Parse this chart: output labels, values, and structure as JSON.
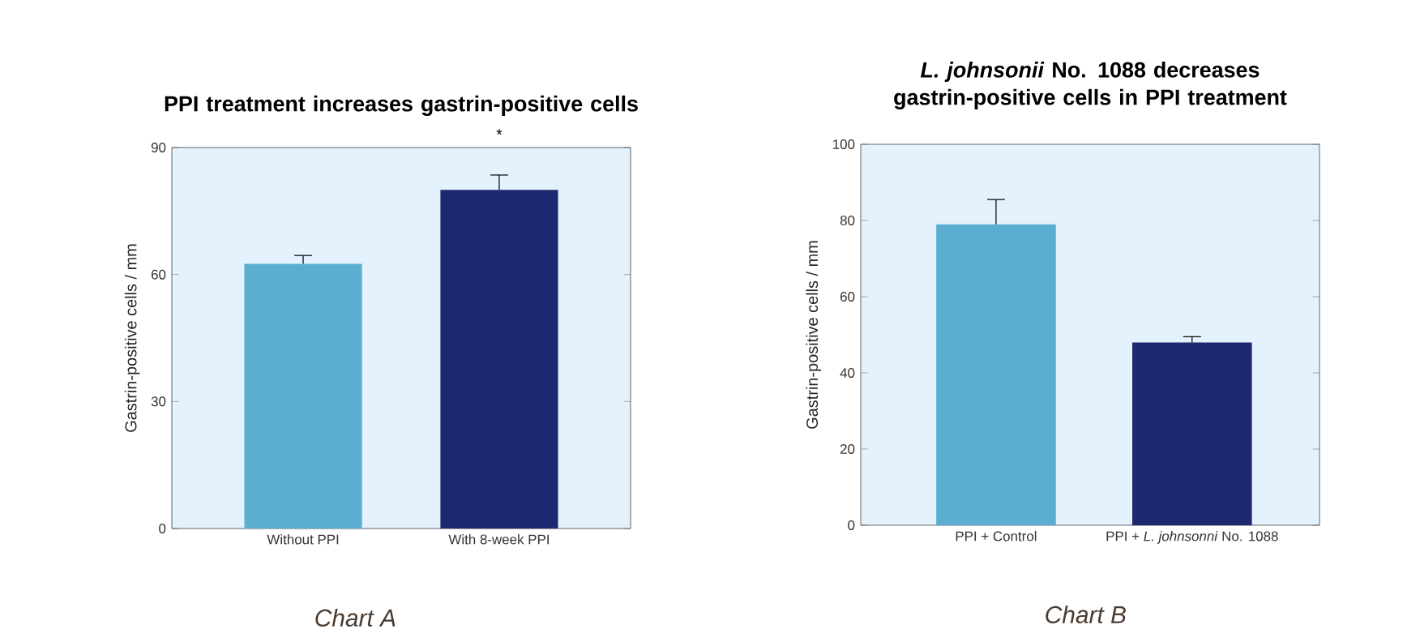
{
  "chart_data": [
    {
      "type": "bar",
      "title": "PPI treatment increases gastrin-positive cells",
      "ylabel": "Gastrin-positive cells / mm",
      "categories": [
        "Without PPI",
        "With 8-week PPI"
      ],
      "values": [
        62.5,
        80
      ],
      "errors": [
        [
          62.5,
          64.5
        ],
        [
          80,
          83.5
        ]
      ],
      "colors": [
        "#5aaed0",
        "#1e2870"
      ],
      "ylim": [
        0,
        90
      ],
      "yticks": [
        0,
        30,
        60,
        90
      ],
      "annotations": [
        "*",
        "Chart A"
      ]
    },
    {
      "type": "bar",
      "title": "*L. johnsonii* No. 1088 decreases gastrin-positive cells in PPI treatment",
      "ylabel": "Gastrin-positive cells / mm",
      "categories": [
        "PPI + Control",
        "PPI + *L. johnsonni* No. 1088"
      ],
      "values": [
        79,
        48
      ],
      "errors": [
        [
          79,
          85.5
        ],
        [
          48,
          49.5
        ]
      ],
      "colors": [
        "#5aaed0",
        "#1e2870"
      ],
      "ylim": [
        0,
        100
      ],
      "yticks": [
        0,
        20,
        40,
        60,
        80,
        100
      ],
      "annotations": [
        "Chart B"
      ]
    }
  ]
}
